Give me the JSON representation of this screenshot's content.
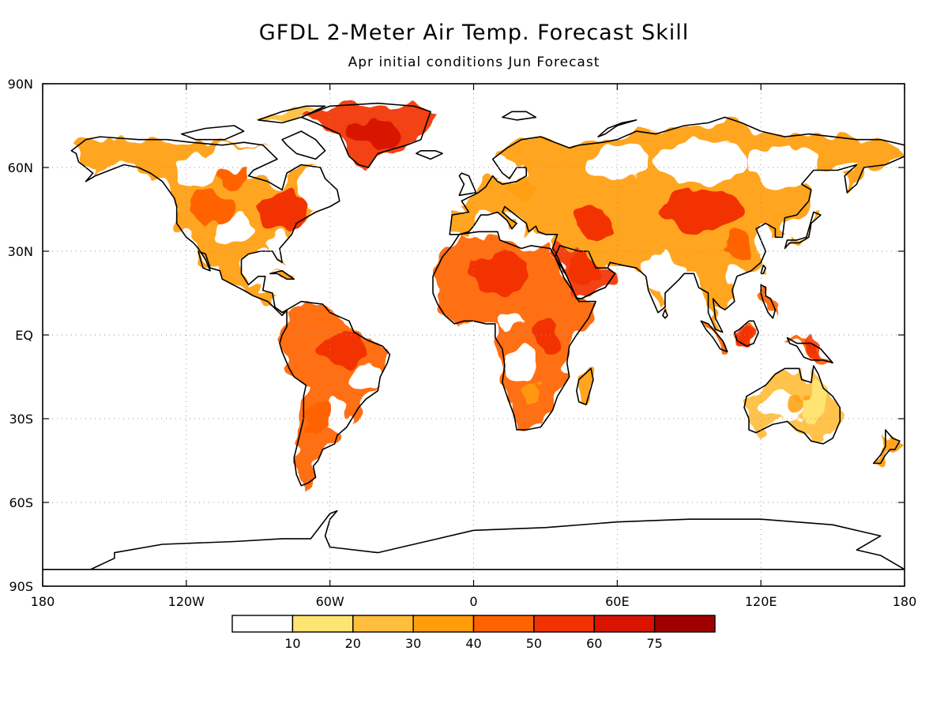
{
  "title": "GFDL 2-Meter Air Temp. Forecast Skill",
  "subtitle": "Apr initial conditions   Jun Forecast",
  "map": {
    "lon_range": [
      -180,
      180
    ],
    "lat_range": [
      -90,
      90
    ],
    "gridlines": true,
    "lat_ticks": [
      {
        "lat": 90,
        "label": "90N"
      },
      {
        "lat": 60,
        "label": "60N"
      },
      {
        "lat": 30,
        "label": "30N"
      },
      {
        "lat": 0,
        "label": "EQ"
      },
      {
        "lat": -30,
        "label": "30S"
      },
      {
        "lat": -60,
        "label": "60S"
      },
      {
        "lat": -90,
        "label": "90S"
      }
    ],
    "lon_ticks": [
      {
        "lon": -180,
        "label": "180"
      },
      {
        "lon": -120,
        "label": "120W"
      },
      {
        "lon": -60,
        "label": "60W"
      },
      {
        "lon": 0,
        "label": "0"
      },
      {
        "lon": 60,
        "label": "60E"
      },
      {
        "lon": 120,
        "label": "120E"
      },
      {
        "lon": 180,
        "label": "180"
      }
    ]
  },
  "colorbar": {
    "colors": [
      "#ffffff",
      "#ffe473",
      "#ffbe3c",
      "#ff9e0a",
      "#ff6300",
      "#f23200",
      "#d81400",
      "#a00000"
    ],
    "labels": [
      "10",
      "20",
      "30",
      "40",
      "50",
      "60",
      "75"
    ]
  },
  "skill_regions": [
    {
      "region": "Greenland",
      "lon": -42,
      "lat": 72,
      "level": 6
    },
    {
      "region": "Eastern North America",
      "lon": -80,
      "lat": 44,
      "level": 5
    },
    {
      "region": "Western North America",
      "lon": -110,
      "lat": 45,
      "level": 4
    },
    {
      "region": "Sahara",
      "lon": 10,
      "lat": 22,
      "level": 5
    },
    {
      "region": "Arabian Peninsula",
      "lon": 45,
      "lat": 24,
      "level": 5
    },
    {
      "region": "Amazon",
      "lon": -55,
      "lat": -5,
      "level": 5
    },
    {
      "region": "Central Asia",
      "lon": 95,
      "lat": 45,
      "level": 5
    },
    {
      "region": "Borneo",
      "lon": 114,
      "lat": 0,
      "level": 5
    },
    {
      "region": "New Guinea",
      "lon": 142,
      "lat": -5,
      "level": 5
    },
    {
      "region": "Australia",
      "lon": 135,
      "lat": -25,
      "level": 3
    },
    {
      "region": "Southern Africa",
      "lon": 25,
      "lat": -20,
      "level": 3
    },
    {
      "region": "Europe",
      "lon": 20,
      "lat": 52,
      "level": 3
    }
  ]
}
